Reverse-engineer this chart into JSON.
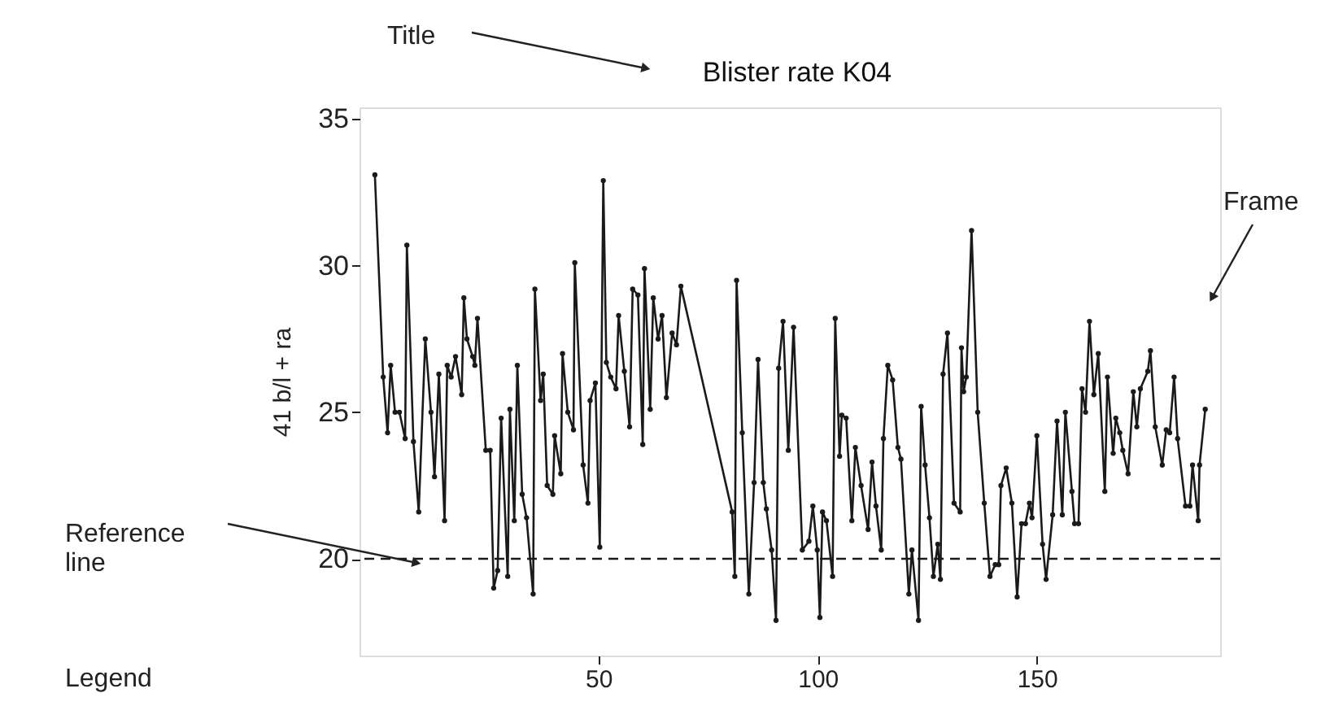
{
  "chart_data": {
    "type": "line",
    "title": "Blister rate K04",
    "ylabel": "41 b/l + ra",
    "annotations": [
      "Title",
      "Frame",
      "Reference line",
      "Legend"
    ],
    "x": [
      -1.0,
      0.9,
      1.9,
      2.6,
      3.6,
      4.6,
      5.9,
      6.3,
      7.8,
      9.0,
      10.5,
      11.8,
      12.6,
      13.6,
      14.9,
      15.5,
      16.4,
      17.4,
      18.8,
      19.3,
      20.0,
      21.3,
      21.8,
      22.4,
      24.3,
      25.3,
      26.1,
      27.0,
      27.8,
      29.3,
      29.8,
      30.8,
      31.5,
      32.6,
      33.6,
      35.1,
      35.5,
      36.8,
      37.4,
      38.3,
      39.6,
      40.0,
      41.4,
      41.8,
      43.0,
      44.3,
      44.6,
      46.5,
      47.6,
      48.1,
      49.3,
      50.3,
      51.1,
      51.8,
      52.8,
      54.0,
      54.6,
      55.9,
      57.1,
      57.8,
      59.0,
      60.1,
      60.5,
      61.8,
      62.5,
      63.6,
      64.5,
      65.5,
      66.8,
      67.8,
      68.8,
      80.5,
      81.1,
      81.5,
      82.8,
      84.3,
      85.5,
      86.4,
      87.6,
      88.3,
      89.5,
      90.5,
      91.1,
      92.1,
      93.3,
      94.5,
      96.5,
      98.0,
      98.9,
      99.9,
      100.5,
      101.1,
      102.0,
      103.4,
      104.0,
      105.0,
      105.5,
      106.5,
      107.8,
      108.6,
      109.9,
      111.5,
      112.4,
      113.3,
      114.5,
      115.0,
      116.0,
      117.1,
      118.3,
      119.0,
      120.8,
      121.5,
      123.0,
      123.6,
      124.5,
      125.5,
      126.4,
      127.4,
      128.0,
      128.6,
      129.6,
      131.1,
      132.5,
      132.8,
      133.3,
      133.9,
      135.1,
      136.5,
      138.0,
      139.3,
      140.5,
      141.3,
      141.8,
      143.0,
      144.3,
      145.5,
      146.5,
      147.4,
      148.3,
      148.9,
      150.0,
      151.3,
      152.1,
      153.6,
      154.6,
      155.8,
      156.5,
      158.0,
      158.6,
      159.5,
      160.3,
      161.1,
      162.0,
      163.0,
      164.0,
      165.5,
      166.1,
      167.4,
      168.0,
      168.9,
      169.6,
      170.8,
      172.0,
      172.8,
      173.6,
      175.3,
      175.9,
      177.0,
      178.6,
      179.5,
      180.3,
      181.3,
      182.1,
      183.9,
      184.9,
      185.5,
      186.8,
      187.1,
      188.4
    ],
    "series": [
      {
        "color": "#1a1a1a",
        "values": [
          33.1,
          26.2,
          24.3,
          26.6,
          25.0,
          25.0,
          24.1,
          30.7,
          24.0,
          21.6,
          27.5,
          25.0,
          22.8,
          26.3,
          21.3,
          26.6,
          26.2,
          26.9,
          25.6,
          28.9,
          27.5,
          26.9,
          26.6,
          28.2,
          23.7,
          23.7,
          19.0,
          19.6,
          24.8,
          19.4,
          25.1,
          21.3,
          26.6,
          22.2,
          21.4,
          18.8,
          29.2,
          25.4,
          26.3,
          22.5,
          22.2,
          24.2,
          22.9,
          27.0,
          25.0,
          24.4,
          30.1,
          23.2,
          21.9,
          25.4,
          26.0,
          20.4,
          32.9,
          26.7,
          26.2,
          25.8,
          28.3,
          26.4,
          24.5,
          29.2,
          29.0,
          23.9,
          29.9,
          25.1,
          28.9,
          27.5,
          28.3,
          25.5,
          27.7,
          27.3,
          29.3,
          21.6,
          19.4,
          29.5,
          24.3,
          18.8,
          22.6,
          26.8,
          22.6,
          21.7,
          20.3,
          17.9,
          26.5,
          28.1,
          23.7,
          27.9,
          20.3,
          20.6,
          21.8,
          20.3,
          18.0,
          21.6,
          21.3,
          19.4,
          28.2,
          23.5,
          24.9,
          24.8,
          21.3,
          23.8,
          22.5,
          21.0,
          23.3,
          21.8,
          20.3,
          24.1,
          26.6,
          26.1,
          23.8,
          23.4,
          18.8,
          20.3,
          17.9,
          25.2,
          23.2,
          21.4,
          19.4,
          20.5,
          19.3,
          26.3,
          27.7,
          21.9,
          21.6,
          27.2,
          25.7,
          26.2,
          31.2,
          25.0,
          21.9,
          19.4,
          19.8,
          19.8,
          22.5,
          23.1,
          21.9,
          18.7,
          21.2,
          21.2,
          21.9,
          21.4,
          24.2,
          20.5,
          19.3,
          21.5,
          24.7,
          21.5,
          25.0,
          22.3,
          21.2,
          21.2,
          25.8,
          25.0,
          28.1,
          25.6,
          27.0,
          22.3,
          26.2,
          23.6,
          24.8,
          24.3,
          23.7,
          22.9,
          25.7,
          24.5,
          25.8,
          26.4,
          27.1,
          24.5,
          23.2,
          24.4,
          24.3,
          26.2,
          24.1,
          21.8,
          21.8,
          23.2,
          21.3,
          23.2,
          25.1
        ]
      }
    ],
    "xlim": [
      -4.5,
      191.8
    ],
    "ylim": [
      16.7,
      35.4
    ],
    "xticks": [
      50,
      100,
      150
    ],
    "yticks": [
      20,
      25,
      30,
      35
    ],
    "ref_lines": [
      {
        "axis": "y",
        "value": 20,
        "line_style": "dashed",
        "color": "#1a1a1a"
      }
    ],
    "marker": "circle",
    "line_style": "solid",
    "grid": false,
    "legend": false
  }
}
